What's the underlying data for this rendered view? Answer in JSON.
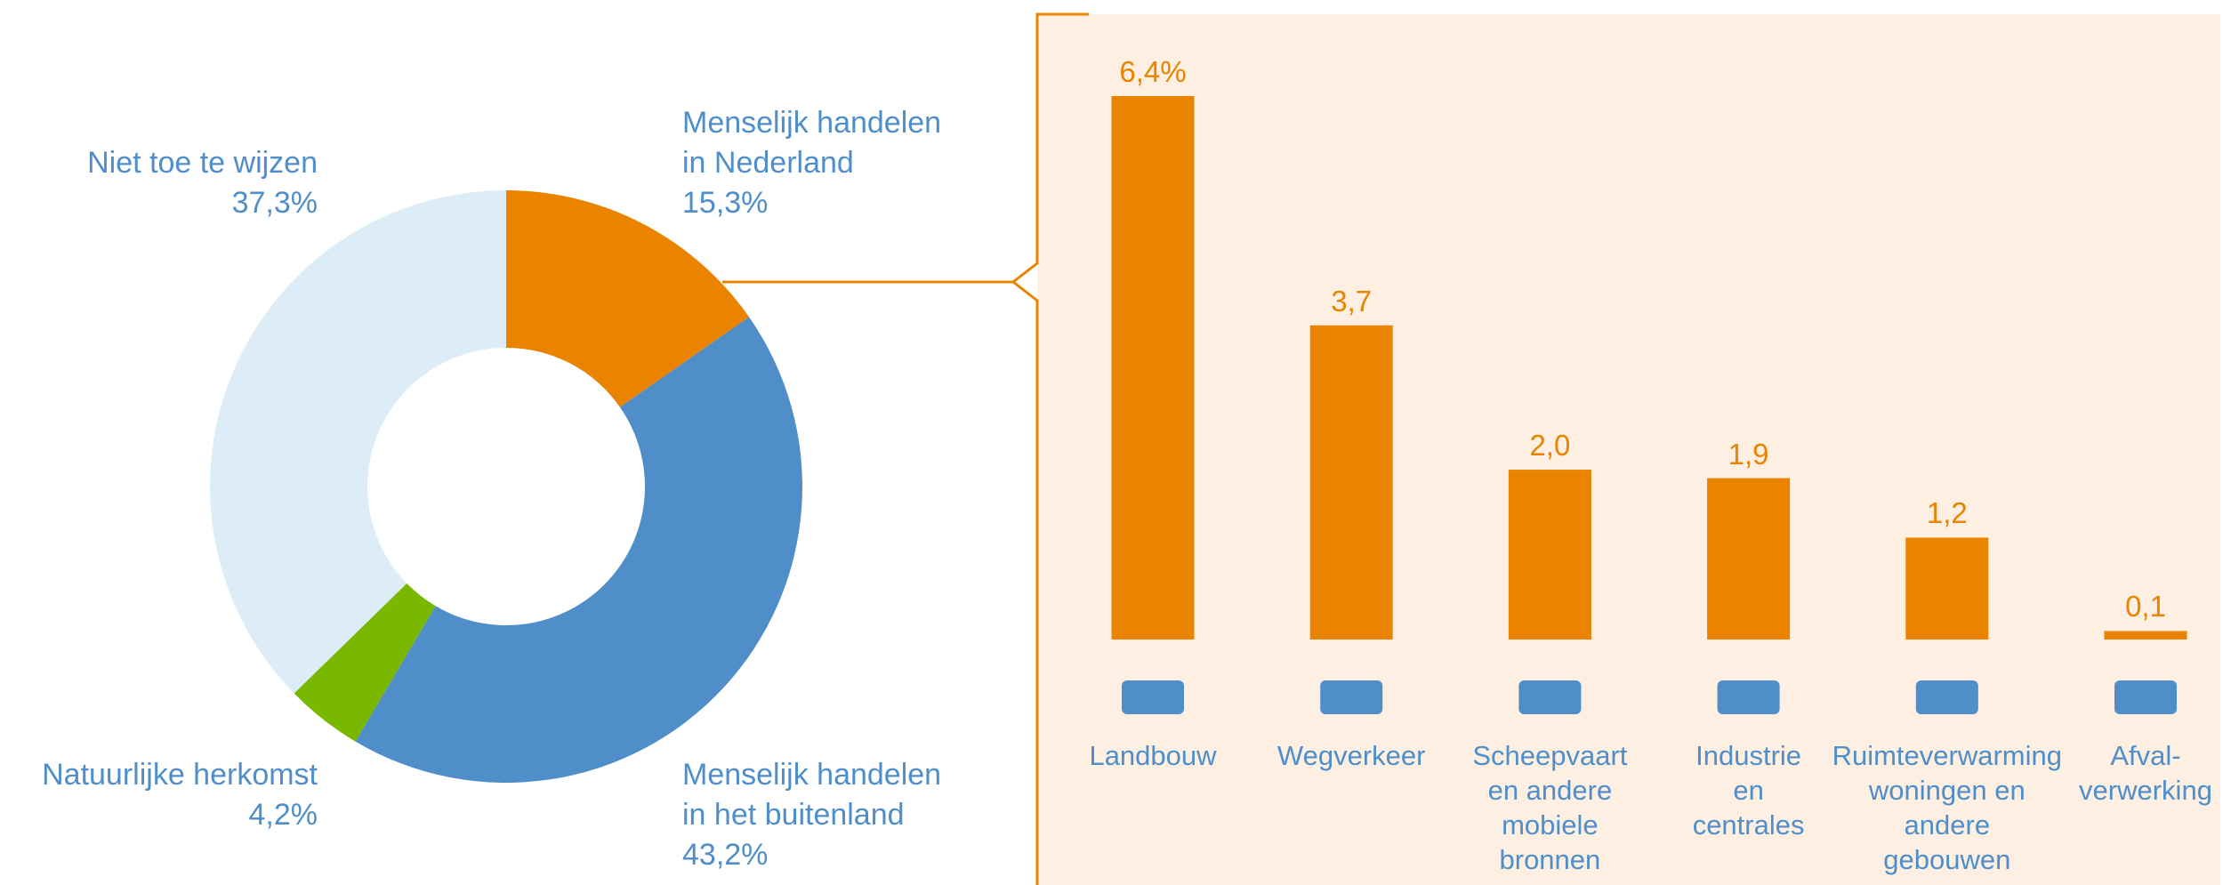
{
  "chart_data": [
    {
      "type": "pie",
      "categories": [
        "Menselijk handelen\nin Nederland",
        "Menselijk handelen\nin het buitenland",
        "Natuurlijke herkomst",
        "Niet toe te wijzen"
      ],
      "values": [
        15.3,
        43.2,
        4.2,
        37.3
      ],
      "value_labels": [
        "15,3%",
        "43,2%",
        "4,2%",
        "37,3%"
      ],
      "colors": [
        "#e98300",
        "#4f8ec9",
        "#7ab800",
        "#dcedf8"
      ]
    },
    {
      "type": "bar",
      "categories": [
        "Landbouw",
        "Wegverkeer",
        "Scheepvaart\nen andere\nmobiele\nbronnen",
        "Industrie\nen\ncentrales",
        "Ruimteverwarming\nwoningen en\nandere\ngebouwen",
        "Afval-\nverwerking"
      ],
      "values": [
        6.4,
        3.7,
        2.0,
        1.9,
        1.2,
        0.1
      ],
      "value_labels": [
        "6,4%",
        "3,7",
        "2,0",
        "1,9",
        "1,2",
        "0,1"
      ],
      "color": "#e98300"
    }
  ]
}
